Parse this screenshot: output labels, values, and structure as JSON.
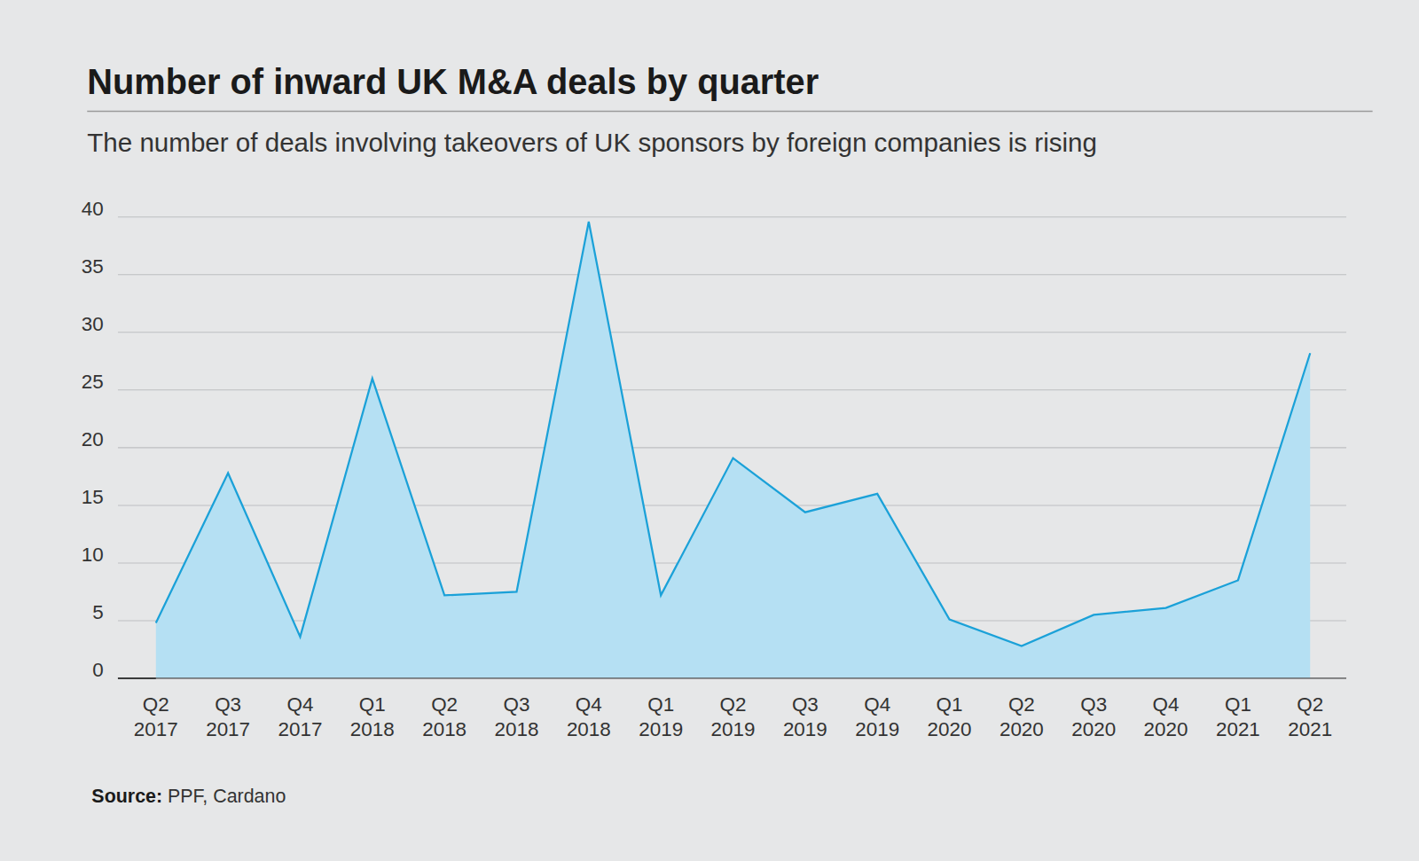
{
  "chart_data": {
    "type": "area",
    "title": "Number of inward UK M&A deals by quarter",
    "subtitle": "The number of deals involving takeovers of UK sponsors by foreign companies is rising",
    "source": "Source: PPF, Cardano",
    "categories": [
      "Q2 2017",
      "Q3 2017",
      "Q4 2017",
      "Q1 2018",
      "Q2 2018",
      "Q3 2018",
      "Q4 2018",
      "Q1 2019",
      "Q2 2019",
      "Q3 2019",
      "Q4 2019",
      "Q1 2020",
      "Q2 2020",
      "Q3 2020",
      "Q4 2020",
      "Q1 2021",
      "Q2 2021"
    ],
    "values": [
      4.8,
      17.8,
      3.6,
      26,
      7.2,
      7.5,
      39.6,
      7.2,
      19.1,
      14.4,
      16,
      5.1,
      2.8,
      5.5,
      6.1,
      8.5,
      28.2
    ],
    "color": "#1ba1d8",
    "ylim": [
      0,
      40
    ],
    "yticks": [
      0,
      5,
      10,
      15,
      20,
      25,
      30,
      35,
      40
    ],
    "grid": true
  }
}
